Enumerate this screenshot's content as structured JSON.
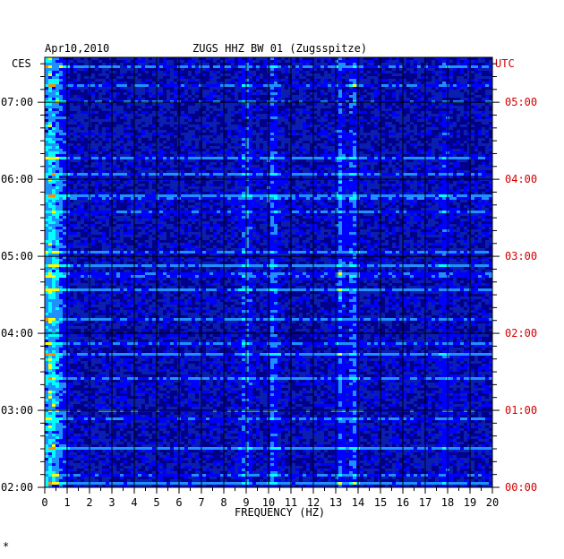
{
  "header": {
    "date": "Apr10,2010",
    "station": "ZUGS HHZ BW 01 (Zugsspitze)"
  },
  "axes": {
    "left_zone_label": "CES",
    "right_zone_label": "UTC",
    "xlabel": "FREQUENCY (HZ)"
  },
  "colors": {
    "background": "#ffffff",
    "axis_text": "#000000",
    "utc_text": "#d40000",
    "gridline": "#000000",
    "spectrogram_base": "#0a1fb0"
  },
  "chart_data": {
    "type": "heatmap",
    "title": "ZUGS HHZ BW 01 (Zugsspitze)",
    "date": "Apr10,2010",
    "xlabel": "FREQUENCY (HZ)",
    "x_unit": "Hz",
    "xlim": [
      0,
      20
    ],
    "x_ticks": [
      "0",
      "1",
      "2",
      "3",
      "4",
      "5",
      "6",
      "7",
      "8",
      "9",
      "10",
      "11",
      "12",
      "13",
      "14",
      "15",
      "16",
      "17",
      "18",
      "19",
      "20"
    ],
    "y_left_label": "CES",
    "y_left_ticks": [
      "02:00",
      "03:00",
      "04:00",
      "05:00",
      "06:00",
      "07:00"
    ],
    "y_right_label": "UTC",
    "y_right_ticks": [
      "00:00",
      "01:00",
      "02:00",
      "03:00",
      "04:00",
      "05:00"
    ],
    "time_range_ces": [
      "02:00",
      "07:35"
    ],
    "grid": true,
    "colormap": [
      "#00008b",
      "#0000ff",
      "#1e90ff",
      "#00ffff",
      "#ffff00",
      "#ff8c00",
      "#ff0000"
    ],
    "energy_bands_hz": [
      {
        "center": 0.3,
        "level": "high"
      },
      {
        "center": 9.0,
        "level": "medium"
      },
      {
        "center": 10.2,
        "level": "medium"
      },
      {
        "center": 13.2,
        "level": "medium"
      },
      {
        "center": 13.8,
        "level": "medium"
      },
      {
        "center": 17.9,
        "level": "low"
      }
    ]
  }
}
